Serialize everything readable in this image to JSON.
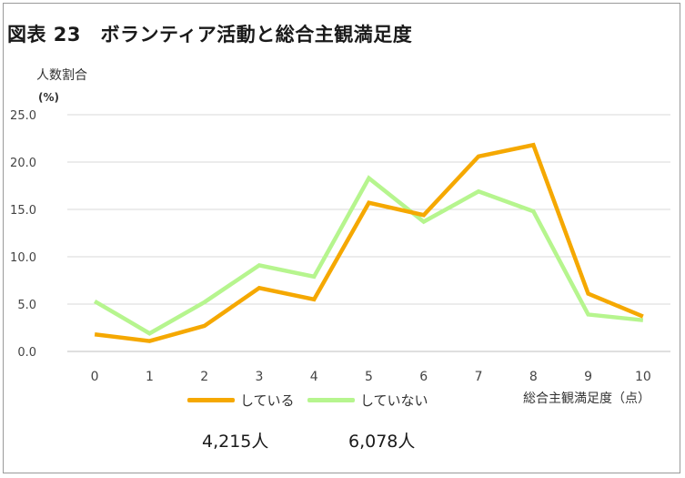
{
  "title": "図表 23　ボランティア活動と総合主観満足度",
  "chart_data": {
    "type": "line",
    "ylabel": "人数割合",
    "yunit": "(%)",
    "xlabel": "総合主観満足度（点）",
    "x": [
      "0",
      "1",
      "2",
      "3",
      "4",
      "5",
      "6",
      "7",
      "8",
      "9",
      "10"
    ],
    "ylim": [
      0,
      25
    ],
    "yticks": [
      "0.0",
      "5.0",
      "10.0",
      "15.0",
      "20.0",
      "25.0"
    ],
    "grid": true,
    "legend_position": "bottom",
    "series": [
      {
        "name": "している",
        "color": "#F5A800",
        "count": "4,215人",
        "values": [
          1.8,
          1.1,
          2.7,
          6.7,
          5.5,
          15.7,
          14.4,
          20.6,
          21.8,
          6.1,
          3.7
        ]
      },
      {
        "name": "していない",
        "color": "#B6F58E",
        "count": "6,078人",
        "values": [
          5.3,
          1.9,
          5.2,
          9.1,
          7.9,
          18.3,
          13.7,
          16.9,
          14.8,
          3.9,
          3.3
        ]
      }
    ]
  }
}
